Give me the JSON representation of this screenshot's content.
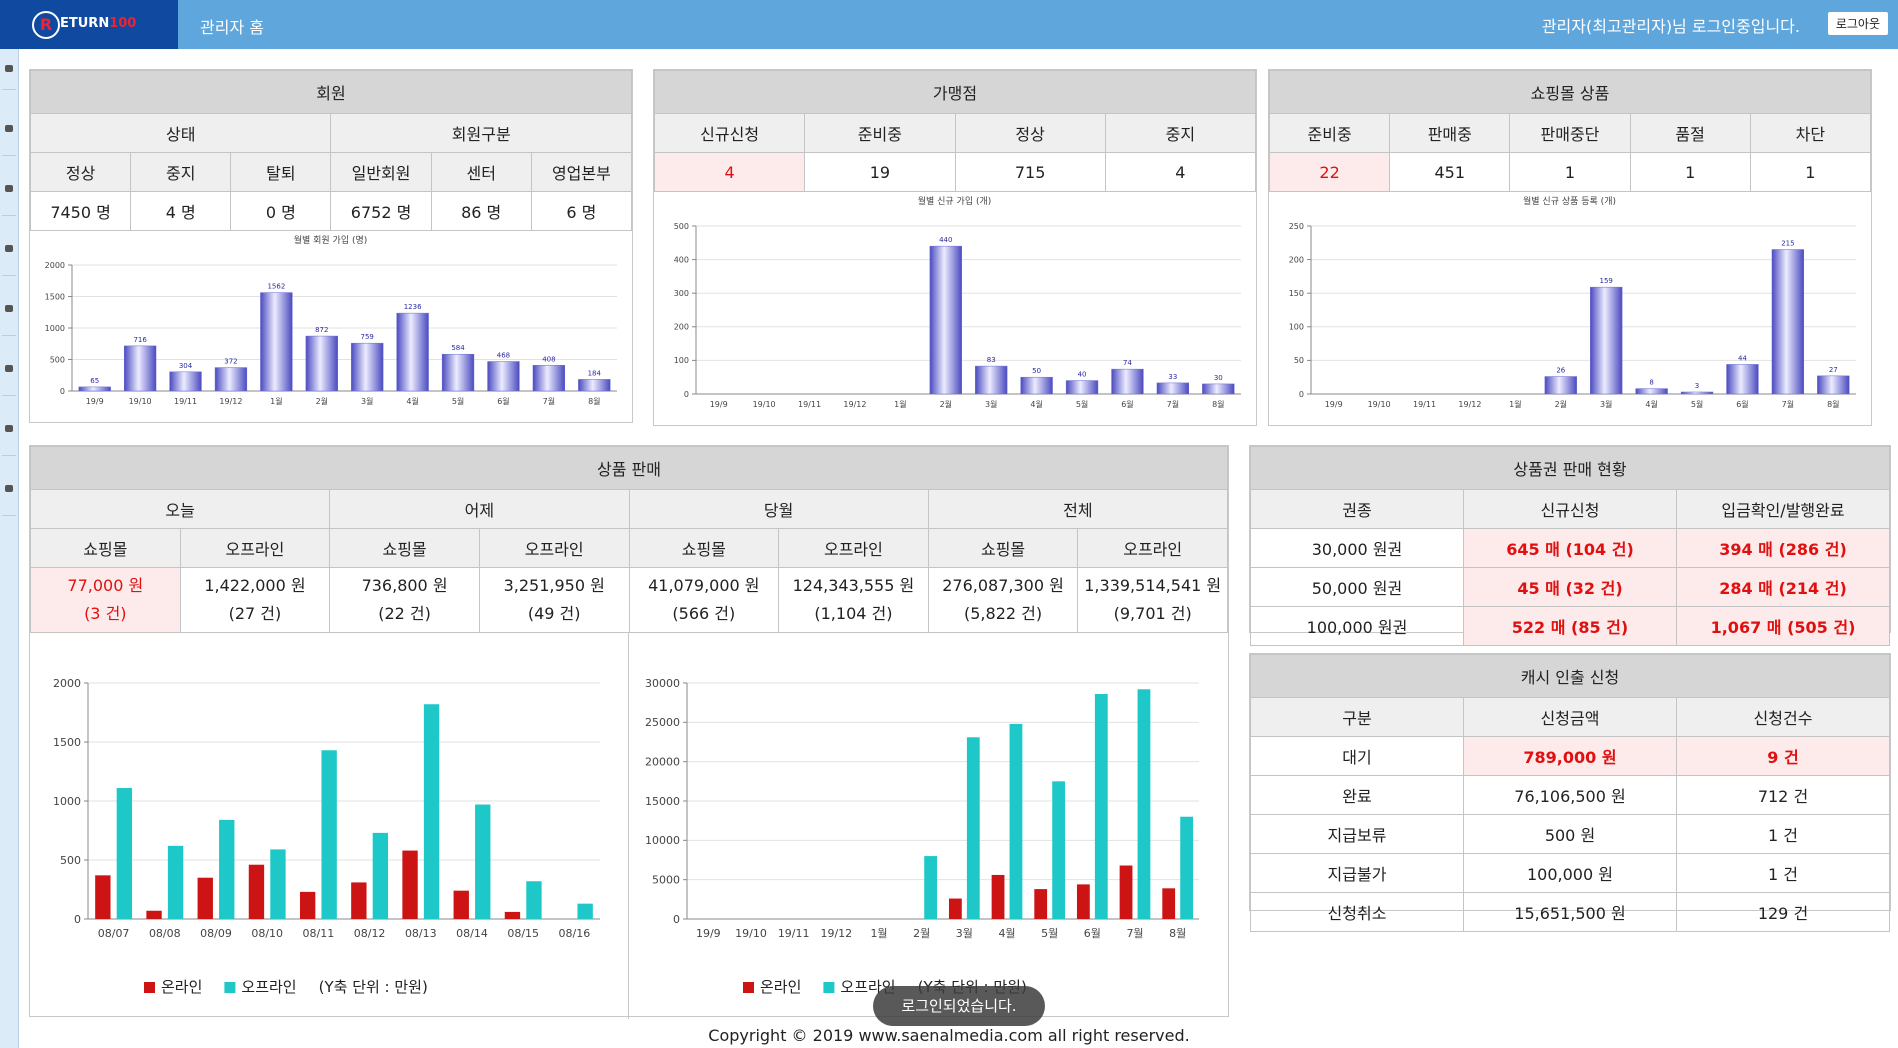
{
  "header": {
    "logo_mark": "R",
    "logo_text": "ETURN",
    "logo_num": "100",
    "title": "관리자 홈",
    "user": "관리자(최고관리자)님 로그인중입니다.",
    "logout": "로그아웃"
  },
  "members": {
    "title": "회원",
    "groups": [
      "상태",
      "회원구분"
    ],
    "headers": [
      "정상",
      "중지",
      "탈퇴",
      "일반회원",
      "센터",
      "영업본부"
    ],
    "values": [
      "7450 명",
      "4 명",
      "0 명",
      "6752 명",
      "86 명",
      "6 명"
    ]
  },
  "franchise": {
    "title": "가맹점",
    "headers": [
      "신규신청",
      "준비중",
      "정상",
      "중지"
    ],
    "values": [
      4,
      19,
      715,
      4
    ]
  },
  "shop": {
    "title": "쇼핑몰 상품",
    "headers": [
      "준비중",
      "판매중",
      "판매중단",
      "품절",
      "차단"
    ],
    "values": [
      22,
      451,
      1,
      1,
      1
    ]
  },
  "sales": {
    "title": "상품 판매",
    "periods": [
      "오늘",
      "어제",
      "당월",
      "전체"
    ],
    "columns": [
      "쇼핑몰",
      "오프라인",
      "쇼핑몰",
      "오프라인",
      "쇼핑몰",
      "오프라인",
      "쇼핑몰",
      "오프라인"
    ],
    "cells": [
      {
        "amount": "77,000 원",
        "count": "(3 건)"
      },
      {
        "amount": "1,422,000 원",
        "count": "(27 건)"
      },
      {
        "amount": "736,800 원",
        "count": "(22 건)"
      },
      {
        "amount": "3,251,950 원",
        "count": "(49 건)"
      },
      {
        "amount": "41,079,000 원",
        "count": "(566 건)"
      },
      {
        "amount": "124,343,555 원",
        "count": "(1,104 건)"
      },
      {
        "amount": "276,087,300 원",
        "count": "(5,822 건)"
      },
      {
        "amount": "1,339,514,541 원",
        "count": "(9,701 건)"
      }
    ]
  },
  "voucher": {
    "title": "상품권 판매 현황",
    "headers": [
      "권종",
      "신규신청",
      "입금확인/발행완료"
    ],
    "rows": [
      [
        "30,000 원권",
        "645 매  (104 건)",
        "394 매  (286 건)"
      ],
      [
        "50,000 원권",
        "45 매  (32 건)",
        "284 매  (214 건)"
      ],
      [
        "100,000 원권",
        "522 매  (85 건)",
        "1,067 매  (505 건)"
      ]
    ]
  },
  "cash": {
    "title": "캐시 인출 신청",
    "headers": [
      "구분",
      "신청금액",
      "신청건수"
    ],
    "rows": [
      [
        "대기",
        "789,000 원",
        "9 건"
      ],
      [
        "완료",
        "76,106,500 원",
        "712 건"
      ],
      [
        "지급보류",
        "500 원",
        "1 건"
      ],
      [
        "지급불가",
        "100,000 원",
        "1 건"
      ],
      [
        "신청취소",
        "15,651,500 원",
        "129 건"
      ]
    ]
  },
  "chart_data": [
    {
      "type": "bar",
      "title": "월별 회원 가입 (명)",
      "categories": [
        "19/9",
        "19/10",
        "19/11",
        "19/12",
        "1월",
        "2월",
        "3월",
        "4월",
        "5월",
        "6월",
        "7월",
        "8월"
      ],
      "values": [
        65,
        716,
        304,
        372,
        1562,
        872,
        759,
        1236,
        584,
        468,
        408,
        184
      ],
      "color": "#4a4ac0",
      "ylim": [
        0,
        2000
      ],
      "yticks": [
        0,
        500,
        1000,
        1500,
        2000
      ],
      "grid": true
    },
    {
      "type": "bar",
      "title": "월별 신규 가입 (개)",
      "categories": [
        "19/9",
        "19/10",
        "19/11",
        "19/12",
        "1월",
        "2월",
        "3월",
        "4월",
        "5월",
        "6월",
        "7월",
        "8월"
      ],
      "values": [
        null,
        null,
        null,
        null,
        null,
        440,
        83,
        50,
        40,
        74,
        33,
        30
      ],
      "color": "#4a4ac0",
      "ylim": [
        0,
        500
      ],
      "yticks": [
        0,
        100,
        200,
        300,
        400,
        500
      ],
      "grid": true
    },
    {
      "type": "bar",
      "title": "월별 신규 상품 등록 (개)",
      "categories": [
        "19/9",
        "19/10",
        "19/11",
        "19/12",
        "1월",
        "2월",
        "3월",
        "4월",
        "5월",
        "6월",
        "7월",
        "8월"
      ],
      "values": [
        null,
        null,
        null,
        null,
        null,
        26,
        159,
        8,
        3,
        44,
        215,
        27
      ],
      "color": "#4a4ac0",
      "ylim": [
        0,
        250
      ],
      "yticks": [
        0,
        50,
        100,
        150,
        200,
        250
      ],
      "grid": true
    },
    {
      "type": "bar",
      "categories": [
        "08/07",
        "08/08",
        "08/09",
        "08/10",
        "08/11",
        "08/12",
        "08/13",
        "08/14",
        "08/15",
        "08/16"
      ],
      "series": [
        {
          "name": "온라인",
          "color": "#cc1414",
          "values": [
            370,
            70,
            350,
            460,
            230,
            310,
            580,
            240,
            60,
            0
          ]
        },
        {
          "name": "오프라인",
          "color": "#1ec8c8",
          "values": [
            1110,
            620,
            840,
            590,
            1430,
            730,
            1820,
            970,
            320,
            130
          ]
        }
      ],
      "note": "(Y축 단위 : 만원)",
      "ylim": [
        0,
        2000
      ],
      "yticks": [
        0,
        500,
        1000,
        1500,
        2000
      ],
      "grid": true
    },
    {
      "type": "bar",
      "categories": [
        "19/9",
        "19/10",
        "19/11",
        "19/12",
        "1월",
        "2월",
        "3월",
        "4월",
        "5월",
        "6월",
        "7월",
        "8월"
      ],
      "series": [
        {
          "name": "온라인",
          "color": "#cc1414",
          "values": [
            0,
            0,
            0,
            0,
            0,
            0,
            2600,
            5600,
            3800,
            4400,
            6800,
            3900
          ]
        },
        {
          "name": "오프라인",
          "color": "#1ec8c8",
          "values": [
            0,
            0,
            0,
            0,
            0,
            8000,
            23100,
            24800,
            17500,
            28600,
            29200,
            13000
          ]
        }
      ],
      "note": "(Y축 단위 : 만원)",
      "ylim": [
        0,
        30000
      ],
      "yticks": [
        0,
        5000,
        10000,
        15000,
        20000,
        25000,
        30000
      ],
      "grid": true
    }
  ],
  "toast": "로그인되었습니다.",
  "footer": "Copyright © 2019 www.saenalmedia.com all right reserved."
}
